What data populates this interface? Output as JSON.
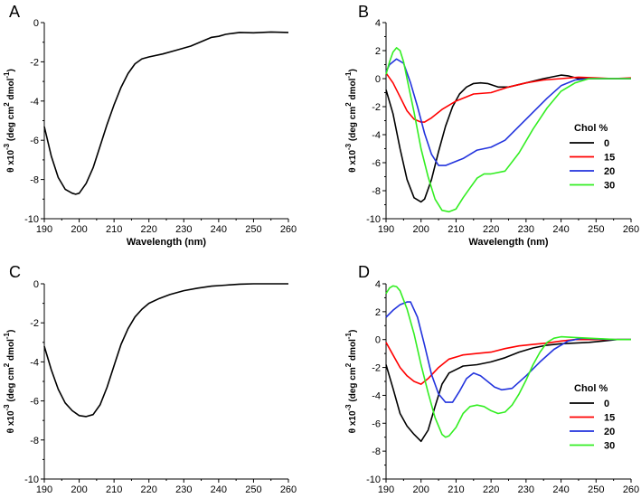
{
  "chart_data": [
    {
      "panel": "A",
      "type": "line",
      "xlabel": "Wavelength (nm)",
      "ylabel": {
        "pre": "θ x10",
        "exp1": "-3",
        "mid": " (deg cm",
        "exp2": "2",
        "mid2": " dmol",
        "exp3": "-1",
        "post": ")"
      },
      "xlim": [
        190,
        260
      ],
      "ylim": [
        -10,
        0
      ],
      "xticks": [
        "190",
        "200",
        "210",
        "220",
        "230",
        "240",
        "250",
        "260"
      ],
      "yticks": [
        "0",
        "-2",
        "-4",
        "-6",
        "-8",
        "-10"
      ],
      "legend": null,
      "series": [
        {
          "name": "",
          "color": "#000000",
          "x": [
            190,
            192,
            194,
            196,
            198,
            199,
            200,
            202,
            204,
            206,
            208,
            210,
            212,
            214,
            216,
            218,
            220,
            224,
            228,
            232,
            236,
            238,
            240,
            242,
            244,
            246,
            250,
            255,
            260
          ],
          "y": [
            -5.3,
            -6.8,
            -7.9,
            -8.5,
            -8.7,
            -8.75,
            -8.7,
            -8.2,
            -7.4,
            -6.3,
            -5.2,
            -4.2,
            -3.3,
            -2.6,
            -2.1,
            -1.85,
            -1.75,
            -1.6,
            -1.4,
            -1.2,
            -0.9,
            -0.75,
            -0.7,
            -0.6,
            -0.55,
            -0.5,
            -0.52,
            -0.48,
            -0.5
          ]
        }
      ]
    },
    {
      "panel": "B",
      "type": "line",
      "xlabel": "Wavelength (nm)",
      "ylabel": {
        "pre": "θ x10",
        "exp1": "-3",
        "mid": " (deg cm",
        "exp2": "2",
        "mid2": " dmol",
        "exp3": "-1",
        "post": ")"
      },
      "xlim": [
        190,
        260
      ],
      "ylim": [
        -10,
        4
      ],
      "xticks": [
        "190",
        "200",
        "210",
        "220",
        "230",
        "240",
        "250",
        "260"
      ],
      "yticks": [
        "4",
        "2",
        "0",
        "-2",
        "-4",
        "-6",
        "-8",
        "-10"
      ],
      "legend": {
        "title": "Chol %",
        "position": "right"
      },
      "series": [
        {
          "name": "0",
          "color": "#000000",
          "x": [
            190,
            192,
            194,
            196,
            198,
            200,
            201,
            203,
            205,
            207,
            209,
            211,
            213,
            215,
            217,
            219,
            222,
            225,
            230,
            235,
            240,
            242,
            245,
            250,
            255,
            260
          ],
          "y": [
            -0.8,
            -2.5,
            -5.0,
            -7.2,
            -8.5,
            -8.8,
            -8.6,
            -7.2,
            -5.2,
            -3.4,
            -2.0,
            -1.1,
            -0.6,
            -0.35,
            -0.3,
            -0.35,
            -0.6,
            -0.6,
            -0.3,
            0.0,
            0.25,
            0.2,
            0.0,
            0.0,
            0.0,
            0.0
          ]
        },
        {
          "name": "15",
          "color": "#ff0000",
          "x": [
            190,
            192,
            194,
            196,
            198,
            200,
            201,
            203,
            206,
            210,
            215,
            220,
            225,
            230,
            235,
            240,
            245,
            250,
            255,
            260
          ],
          "y": [
            0.4,
            -0.3,
            -1.3,
            -2.3,
            -2.9,
            -3.1,
            -3.1,
            -2.8,
            -2.2,
            -1.6,
            -1.1,
            -1.0,
            -0.6,
            -0.3,
            -0.1,
            0.0,
            0.1,
            0.05,
            0.0,
            0.05
          ]
        },
        {
          "name": "20",
          "color": "#2233dd",
          "x": [
            190,
            191,
            193,
            195,
            197,
            199,
            201,
            203,
            205,
            207,
            209,
            212,
            216,
            220,
            224,
            228,
            232,
            236,
            240,
            244,
            248,
            252,
            256,
            260
          ],
          "y": [
            0.5,
            1.0,
            1.4,
            1.1,
            -0.3,
            -2.0,
            -3.9,
            -5.4,
            -6.2,
            -6.2,
            -6.0,
            -5.7,
            -5.1,
            -4.9,
            -4.4,
            -3.4,
            -2.4,
            -1.4,
            -0.5,
            -0.1,
            0.0,
            0.0,
            0.0,
            0.0
          ]
        },
        {
          "name": "30",
          "color": "#33ee22",
          "x": [
            190,
            191,
            192,
            193,
            194,
            195,
            196,
            198,
            200,
            202,
            204,
            206,
            208,
            210,
            212,
            214,
            216,
            218,
            220,
            224,
            228,
            232,
            236,
            240,
            244,
            248,
            252,
            256,
            260
          ],
          "y": [
            0.3,
            1.2,
            1.9,
            2.2,
            2.0,
            1.2,
            0.0,
            -2.4,
            -5.0,
            -7.0,
            -8.6,
            -9.4,
            -9.5,
            -9.3,
            -8.5,
            -7.8,
            -7.1,
            -6.8,
            -6.8,
            -6.6,
            -5.3,
            -3.6,
            -2.1,
            -0.9,
            -0.3,
            0.0,
            0.0,
            0.0,
            0.0
          ]
        }
      ]
    },
    {
      "panel": "C",
      "type": "line",
      "xlabel": "Wavelength (nm)",
      "ylabel": {
        "pre": "θ x10",
        "exp1": "-3",
        "mid": " (deg cm",
        "exp2": "2",
        "mid2": " dmol",
        "exp3": "-1",
        "post": ")"
      },
      "xlim": [
        190,
        260
      ],
      "ylim": [
        -10,
        0
      ],
      "xticks": [
        "190",
        "200",
        "210",
        "220",
        "230",
        "240",
        "250",
        "260"
      ],
      "yticks": [
        "0",
        "-2",
        "-4",
        "-6",
        "-8",
        "-10"
      ],
      "legend": null,
      "series": [
        {
          "name": "",
          "color": "#000000",
          "x": [
            190,
            192,
            194,
            196,
            198,
            200,
            202,
            204,
            206,
            208,
            210,
            212,
            214,
            216,
            218,
            220,
            223,
            226,
            230,
            234,
            238,
            242,
            246,
            250,
            255,
            260
          ],
          "y": [
            -3.2,
            -4.4,
            -5.4,
            -6.1,
            -6.5,
            -6.75,
            -6.8,
            -6.7,
            -6.2,
            -5.3,
            -4.2,
            -3.1,
            -2.3,
            -1.7,
            -1.3,
            -1.0,
            -0.75,
            -0.55,
            -0.35,
            -0.22,
            -0.12,
            -0.07,
            -0.02,
            0.0,
            0.0,
            0.0
          ]
        }
      ]
    },
    {
      "panel": "D",
      "type": "line",
      "xlabel": "Wavelength (nm)",
      "ylabel": {
        "pre": "θ x10",
        "exp1": "-3",
        "mid": " (deg cm",
        "exp2": "2",
        "mid2": " dmol",
        "exp3": "-1",
        "post": ")"
      },
      "xlim": [
        190,
        260
      ],
      "ylim": [
        -10,
        4
      ],
      "xticks": [
        "190",
        "200",
        "210",
        "220",
        "230",
        "240",
        "250",
        "260"
      ],
      "yticks": [
        "4",
        "2",
        "0",
        "-2",
        "-4",
        "-6",
        "-8",
        "-10"
      ],
      "legend": {
        "title": "Chol %",
        "position": "right"
      },
      "series": [
        {
          "name": "0",
          "color": "#000000",
          "x": [
            190,
            192,
            194,
            196,
            198,
            200,
            202,
            204,
            206,
            208,
            212,
            216,
            220,
            224,
            228,
            232,
            236,
            240,
            244,
            248,
            252,
            256,
            260
          ],
          "y": [
            -1.8,
            -3.5,
            -5.3,
            -6.2,
            -6.8,
            -7.3,
            -6.5,
            -4.8,
            -3.2,
            -2.4,
            -1.9,
            -1.8,
            -1.6,
            -1.3,
            -0.9,
            -0.6,
            -0.4,
            -0.3,
            -0.25,
            -0.2,
            -0.1,
            0.0,
            0.0
          ]
        },
        {
          "name": "15",
          "color": "#ff0000",
          "x": [
            190,
            192,
            194,
            196,
            198,
            200,
            202,
            205,
            208,
            212,
            216,
            220,
            224,
            228,
            232,
            236,
            240,
            244,
            248,
            252,
            256,
            260
          ],
          "y": [
            -0.2,
            -1.1,
            -2.0,
            -2.6,
            -3.0,
            -3.2,
            -2.8,
            -2.0,
            -1.4,
            -1.1,
            -1.0,
            -0.9,
            -0.65,
            -0.45,
            -0.35,
            -0.25,
            -0.1,
            0.0,
            0.0,
            0.0,
            0.0,
            0.0
          ]
        },
        {
          "name": "20",
          "color": "#2233dd",
          "x": [
            190,
            192,
            194,
            196,
            197,
            199,
            201,
            203,
            205,
            207,
            209,
            211,
            213,
            215,
            217,
            219,
            221,
            223,
            226,
            230,
            234,
            238,
            242,
            246,
            250,
            255,
            260
          ],
          "y": [
            1.6,
            2.1,
            2.5,
            2.7,
            2.7,
            1.6,
            -0.4,
            -2.5,
            -3.9,
            -4.5,
            -4.5,
            -3.7,
            -2.8,
            -2.4,
            -2.6,
            -3.0,
            -3.4,
            -3.6,
            -3.5,
            -2.6,
            -1.6,
            -0.7,
            -0.1,
            0.1,
            0.05,
            0.0,
            0.0
          ]
        },
        {
          "name": "30",
          "color": "#33ee22",
          "x": [
            190,
            191,
            192,
            193,
            194,
            196,
            198,
            200,
            202,
            204,
            206,
            207,
            208,
            210,
            212,
            214,
            216,
            218,
            220,
            222,
            224,
            226,
            228,
            230,
            232,
            234,
            236,
            238,
            240,
            244,
            248,
            252,
            256,
            260
          ],
          "y": [
            3.3,
            3.7,
            3.85,
            3.8,
            3.5,
            2.2,
            0.4,
            -1.8,
            -3.8,
            -5.6,
            -6.8,
            -7.0,
            -6.9,
            -6.3,
            -5.3,
            -4.8,
            -4.7,
            -4.8,
            -5.1,
            -5.3,
            -5.2,
            -4.7,
            -3.9,
            -2.9,
            -1.8,
            -0.9,
            -0.2,
            0.1,
            0.2,
            0.15,
            0.1,
            0.05,
            0.0,
            0.0
          ]
        }
      ]
    }
  ]
}
